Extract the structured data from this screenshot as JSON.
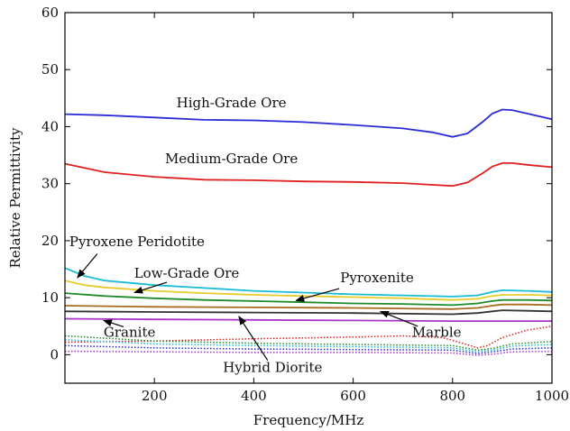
{
  "chart_data": {
    "type": "line",
    "title": "",
    "xlabel": "Frequency/MHz",
    "ylabel": "Relative Permittivity",
    "xlim": [
      20,
      1000
    ],
    "ylim": [
      -5,
      60
    ],
    "xticks": [
      200,
      400,
      600,
      800,
      1000
    ],
    "yticks": [
      0,
      10,
      20,
      30,
      40,
      50,
      60
    ],
    "grid": false,
    "legend": "none",
    "series": [
      {
        "name": "High-Grade Ore",
        "color": "#2b2bd6",
        "dash": "solid",
        "x": [
          20,
          100,
          200,
          300,
          400,
          500,
          600,
          700,
          760,
          800,
          830,
          860,
          880,
          900,
          920,
          950,
          1000
        ],
        "y": [
          42.2,
          42.0,
          41.6,
          41.2,
          41.1,
          40.8,
          40.3,
          39.7,
          39.0,
          38.2,
          38.8,
          40.8,
          42.3,
          43.0,
          42.9,
          42.3,
          41.3
        ]
      },
      {
        "name": "Medium-Grade Ore",
        "color": "#e02020",
        "dash": "solid",
        "x": [
          20,
          100,
          200,
          300,
          400,
          500,
          600,
          700,
          760,
          800,
          830,
          860,
          880,
          900,
          920,
          950,
          1000
        ],
        "y": [
          33.5,
          32.0,
          31.2,
          30.7,
          30.6,
          30.4,
          30.3,
          30.1,
          29.8,
          29.6,
          30.2,
          31.8,
          33.0,
          33.6,
          33.6,
          33.3,
          32.9
        ]
      },
      {
        "color": "#19bcd4",
        "dash": "solid",
        "x": [
          20,
          60,
          100,
          200,
          300,
          400,
          500,
          600,
          700,
          800,
          850,
          880,
          900,
          950,
          1000
        ],
        "y": [
          15.2,
          13.8,
          13.0,
          12.2,
          11.7,
          11.2,
          10.9,
          10.6,
          10.4,
          10.2,
          10.4,
          11.0,
          11.3,
          11.2,
          11.0
        ]
      },
      {
        "color": "#e6cc2a",
        "dash": "solid",
        "x": [
          20,
          60,
          100,
          200,
          300,
          400,
          500,
          600,
          700,
          800,
          850,
          880,
          900,
          950,
          1000
        ],
        "y": [
          13.0,
          12.2,
          11.8,
          11.2,
          10.8,
          10.5,
          10.3,
          10.1,
          9.9,
          9.6,
          9.8,
          10.3,
          10.5,
          10.5,
          10.4
        ]
      },
      {
        "color": "#1f8a2a",
        "dash": "solid",
        "x": [
          20,
          100,
          200,
          300,
          400,
          500,
          600,
          700,
          800,
          850,
          880,
          900,
          950,
          1000
        ],
        "y": [
          10.8,
          10.3,
          9.9,
          9.6,
          9.4,
          9.2,
          9.0,
          8.9,
          8.7,
          9.0,
          9.4,
          9.6,
          9.6,
          9.5
        ]
      },
      {
        "color": "#a86b1f",
        "dash": "solid",
        "x": [
          20,
          200,
          400,
          600,
          800,
          850,
          880,
          900,
          950,
          1000
        ],
        "y": [
          8.6,
          8.4,
          8.3,
          8.2,
          8.0,
          8.2,
          8.6,
          8.8,
          8.8,
          8.7
        ]
      },
      {
        "color": "#333333",
        "dash": "solid",
        "x": [
          20,
          200,
          400,
          600,
          800,
          850,
          880,
          900,
          950,
          1000
        ],
        "y": [
          7.6,
          7.5,
          7.4,
          7.3,
          7.1,
          7.3,
          7.6,
          7.8,
          7.7,
          7.6
        ]
      },
      {
        "color": "#a833c8",
        "dash": "solid",
        "x": [
          20,
          200,
          400,
          600,
          800,
          1000
        ],
        "y": [
          6.3,
          6.2,
          6.1,
          6.0,
          5.9,
          5.9
        ]
      },
      {
        "color": "#e02020",
        "dash": "dotted",
        "x": [
          20,
          200,
          400,
          600,
          700,
          780,
          820,
          850,
          870,
          900,
          950,
          1000
        ],
        "y": [
          2.2,
          2.4,
          2.8,
          3.1,
          3.3,
          3.0,
          2.0,
          1.2,
          1.6,
          3.0,
          4.3,
          5.0
        ]
      },
      {
        "color": "#1f8a2a",
        "dash": "dotted",
        "x": [
          20,
          200,
          400,
          600,
          800,
          850,
          880,
          920,
          1000
        ],
        "y": [
          3.3,
          2.4,
          2.0,
          1.8,
          1.6,
          0.8,
          1.1,
          1.9,
          2.3
        ]
      },
      {
        "color": "#19bcd4",
        "dash": "dotted",
        "x": [
          20,
          200,
          400,
          600,
          800,
          850,
          880,
          920,
          1000
        ],
        "y": [
          2.6,
          1.9,
          1.6,
          1.4,
          1.2,
          0.5,
          0.8,
          1.5,
          1.8
        ]
      },
      {
        "color": "#2b2bd6",
        "dash": "dotted",
        "x": [
          20,
          200,
          400,
          600,
          800,
          850,
          880,
          920,
          1000
        ],
        "y": [
          1.6,
          1.2,
          1.0,
          0.9,
          0.8,
          0.2,
          0.5,
          1.0,
          1.2
        ]
      },
      {
        "color": "#a833c8",
        "dash": "dotted",
        "x": [
          20,
          200,
          400,
          600,
          800,
          850,
          880,
          920,
          1000
        ],
        "y": [
          0.6,
          0.5,
          0.4,
          0.4,
          0.3,
          -0.1,
          0.1,
          0.5,
          0.6
        ]
      }
    ],
    "annotations": [
      {
        "text": "High-Grade Ore",
        "x": 355,
        "y": 44.2
      },
      {
        "text": "Medium-Grade Ore",
        "x": 355,
        "y": 34.4
      },
      {
        "text": "Pyroxene Peridotite",
        "x": 165,
        "y": 19.8,
        "arrow_to": [
          45,
          13.5
        ],
        "arrow_from": [
          85,
          17.7
        ]
      },
      {
        "text": "Low-Grade Ore",
        "x": 265,
        "y": 14.3,
        "arrow_to": [
          160,
          10.9
        ],
        "arrow_from": [
          225,
          12.7
        ]
      },
      {
        "text": "Pyroxenite",
        "x": 648,
        "y": 13.5,
        "arrow_to": [
          485,
          9.5
        ],
        "arrow_from": [
          572,
          11.6
        ]
      },
      {
        "text": "Granite",
        "x": 150,
        "y": 3.9,
        "arrow_to": [
          98,
          6.0
        ],
        "arrow_from": [
          138,
          4.9
        ]
      },
      {
        "text": "Marble",
        "x": 768,
        "y": 3.9,
        "arrow_to": [
          655,
          7.6
        ],
        "arrow_from": [
          730,
          5.0
        ]
      },
      {
        "text": "Hybrid Diorite",
        "x": 438,
        "y": -2.2,
        "arrow_to": [
          370,
          6.7
        ],
        "arrow_from": [
          428,
          -1.0
        ]
      }
    ]
  }
}
